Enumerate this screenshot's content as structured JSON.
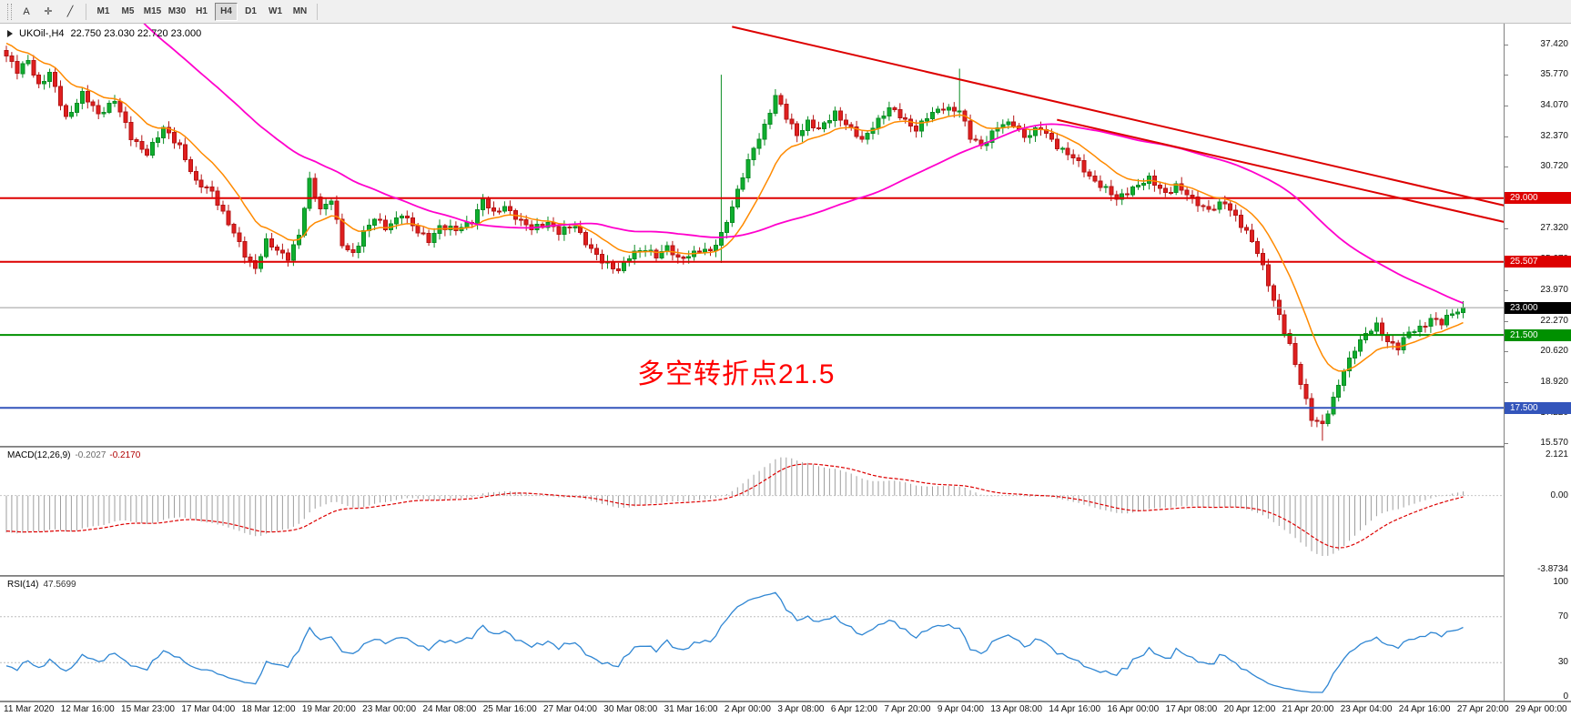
{
  "toolbar": {
    "tools": [
      {
        "name": "text-tool",
        "glyph": "A"
      },
      {
        "name": "crosshair-tool",
        "glyph": "✛"
      },
      {
        "name": "trendline-tool",
        "glyph": "╱"
      }
    ],
    "timeframes": [
      "M1",
      "M5",
      "M15",
      "M30",
      "H1",
      "H4",
      "D1",
      "W1",
      "MN"
    ],
    "active_timeframe": "H4"
  },
  "chart": {
    "title_symbol": "UKOil-,H4",
    "title_ohlc": "22.750 23.030 22.720 23.000",
    "annotation": {
      "text": "多空转折点21.5",
      "color": "#ff0000"
    },
    "price_axis_ticks": [
      "37.420",
      "35.770",
      "34.070",
      "32.370",
      "30.720",
      "29.020",
      "27.320",
      "25.670",
      "23.970",
      "22.270",
      "20.620",
      "18.920",
      "17.220",
      "15.570"
    ],
    "levels": [
      {
        "price": 29.0,
        "label": "29.000",
        "color": "#dd0000",
        "width": 2
      },
      {
        "price": 25.507,
        "label": "25.507",
        "color": "#dd0000",
        "width": 2
      },
      {
        "price": 23.0,
        "label": "23.000",
        "color": "#9c9c9c",
        "box": "#000000",
        "width": 1,
        "current": true
      },
      {
        "price": 21.5,
        "label": "21.500",
        "color": "#009000",
        "width": 2
      },
      {
        "price": 17.5,
        "label": "17.500",
        "color": "#3355bb",
        "width": 2
      }
    ]
  },
  "macd_panel": {
    "label": "MACD(12,26,9)",
    "value_main": "-0.2027",
    "value_signal": "-0.2170",
    "axis_max": "2.121",
    "axis_zero": "0.00",
    "axis_min": "-3.8734"
  },
  "rsi_panel": {
    "label": "RSI(14)",
    "value": "47.5699",
    "axis": [
      "100",
      "70",
      "30",
      "0"
    ],
    "levels": [
      70,
      30
    ]
  },
  "time_axis": {
    "labels": [
      "11 Mar 2020",
      "12 Mar 16:00",
      "15 Mar 23:00",
      "17 Mar 04:00",
      "18 Mar 12:00",
      "19 Mar 20:00",
      "23 Mar 00:00",
      "24 Mar 08:00",
      "25 Mar 16:00",
      "27 Mar 04:00",
      "30 Mar 08:00",
      "31 Mar 16:00",
      "2 Apr 00:00",
      "3 Apr 08:00",
      "6 Apr 12:00",
      "7 Apr 20:00",
      "9 Apr 04:00",
      "13 Apr 08:00",
      "14 Apr 16:00",
      "16 Apr 00:00",
      "17 Apr 08:00",
      "20 Apr 12:00",
      "21 Apr 20:00",
      "23 Apr 04:00",
      "24 Apr 16:00",
      "27 Apr 20:00",
      "29 Apr 00:00"
    ]
  },
  "chart_data": {
    "type": "candlestick",
    "symbol": "UKOil-",
    "timeframe": "H4",
    "current_bar": {
      "open": 22.75,
      "high": 23.03,
      "low": 22.72,
      "close": 23.0
    },
    "visible_price_range": [
      15.42,
      38.56
    ],
    "bars_visible": 270,
    "close_keyframes": [
      [
        0,
        36.8
      ],
      [
        2,
        35.9
      ],
      [
        4,
        36.6
      ],
      [
        6,
        35.2
      ],
      [
        8,
        35.8
      ],
      [
        11,
        33.4
      ],
      [
        14,
        34.7
      ],
      [
        17,
        33.6
      ],
      [
        20,
        34.4
      ],
      [
        23,
        32.3
      ],
      [
        26,
        31.5
      ],
      [
        29,
        32.8
      ],
      [
        32,
        31.9
      ],
      [
        35,
        29.8
      ],
      [
        38,
        29.4
      ],
      [
        41,
        27.6
      ],
      [
        44,
        25.9
      ],
      [
        46,
        25.2
      ],
      [
        48,
        26.6
      ],
      [
        50,
        26.1
      ],
      [
        52,
        25.8
      ],
      [
        54,
        27.0
      ],
      [
        56,
        29.9
      ],
      [
        58,
        28.4
      ],
      [
        60,
        29.0
      ],
      [
        62,
        26.4
      ],
      [
        64,
        25.9
      ],
      [
        66,
        27.2
      ],
      [
        68,
        27.9
      ],
      [
        70,
        27.3
      ],
      [
        73,
        28.2
      ],
      [
        76,
        27.1
      ],
      [
        78,
        26.7
      ],
      [
        80,
        27.5
      ],
      [
        83,
        27.2
      ],
      [
        86,
        27.8
      ],
      [
        88,
        28.9
      ],
      [
        90,
        28.1
      ],
      [
        92,
        28.6
      ],
      [
        95,
        27.7
      ],
      [
        97,
        27.3
      ],
      [
        100,
        27.7
      ],
      [
        102,
        27.1
      ],
      [
        105,
        27.5
      ],
      [
        108,
        26.2
      ],
      [
        110,
        25.5
      ],
      [
        113,
        25.1
      ],
      [
        115,
        25.8
      ],
      [
        118,
        26.2
      ],
      [
        120,
        25.9
      ],
      [
        122,
        26.3
      ],
      [
        124,
        25.6
      ],
      [
        126,
        25.9
      ],
      [
        128,
        26.2
      ],
      [
        130,
        26.0
      ],
      [
        132,
        27.0
      ],
      [
        134,
        28.6
      ],
      [
        136,
        30.2
      ],
      [
        138,
        31.7
      ],
      [
        140,
        33.0
      ],
      [
        142,
        34.6
      ],
      [
        144,
        33.4
      ],
      [
        146,
        32.5
      ],
      [
        148,
        33.2
      ],
      [
        150,
        32.7
      ],
      [
        153,
        33.7
      ],
      [
        155,
        33.1
      ],
      [
        158,
        32.1
      ],
      [
        160,
        33.0
      ],
      [
        163,
        33.9
      ],
      [
        165,
        33.5
      ],
      [
        168,
        32.8
      ],
      [
        170,
        33.4
      ],
      [
        173,
        34.0
      ],
      [
        176,
        33.8
      ],
      [
        178,
        32.3
      ],
      [
        180,
        31.9
      ],
      [
        183,
        32.9
      ],
      [
        186,
        33.1
      ],
      [
        188,
        32.4
      ],
      [
        191,
        32.8
      ],
      [
        194,
        31.9
      ],
      [
        197,
        31.2
      ],
      [
        200,
        30.2
      ],
      [
        203,
        29.5
      ],
      [
        205,
        28.9
      ],
      [
        208,
        29.6
      ],
      [
        211,
        30.0
      ],
      [
        214,
        29.3
      ],
      [
        216,
        29.7
      ],
      [
        219,
        28.9
      ],
      [
        222,
        28.4
      ],
      [
        225,
        28.7
      ],
      [
        227,
        28.0
      ],
      [
        229,
        27.2
      ],
      [
        231,
        26.0
      ],
      [
        233,
        24.3
      ],
      [
        235,
        22.6
      ],
      [
        237,
        20.9
      ],
      [
        239,
        18.8
      ],
      [
        241,
        17.0
      ],
      [
        243,
        16.6
      ],
      [
        245,
        17.9
      ],
      [
        247,
        19.6
      ],
      [
        249,
        20.8
      ],
      [
        251,
        21.5
      ],
      [
        253,
        22.0
      ],
      [
        255,
        21.2
      ],
      [
        257,
        20.8
      ],
      [
        259,
        21.6
      ],
      [
        261,
        21.9
      ],
      [
        263,
        22.4
      ],
      [
        265,
        22.1
      ],
      [
        267,
        22.7
      ],
      [
        269,
        23.0
      ]
    ],
    "spikes": [
      {
        "i": 56,
        "high": 30.45
      },
      {
        "i": 88,
        "high": 29.15
      },
      {
        "i": 132,
        "high": 35.77,
        "low": 25.45
      },
      {
        "i": 176,
        "high": 36.1
      },
      {
        "i": 243,
        "low": 15.7
      }
    ],
    "moving_averages": [
      {
        "name": "fast-ma",
        "period": 13,
        "color": "#ff8a00"
      },
      {
        "name": "slow-ma",
        "period": 55,
        "color": "#ff00cc"
      }
    ],
    "trendlines": [
      {
        "i1": 134,
        "p1": 38.4,
        "i2": 278,
        "p2": 28.5,
        "color": "#dd0000"
      },
      {
        "i1": 194,
        "p1": 33.3,
        "i2": 278,
        "p2": 27.6,
        "color": "#dd0000"
      }
    ],
    "horizontal_levels": [
      29.0,
      25.507,
      23.0,
      21.5,
      17.5
    ],
    "macd": {
      "fast": 12,
      "slow": 26,
      "signal": 9,
      "last_main": -0.2027,
      "last_signal": -0.217,
      "scale_max": 2.121,
      "scale_min": -3.8734
    },
    "rsi": {
      "period": 14,
      "last": 47.5699,
      "scale": [
        0,
        100
      ],
      "overbought": 70,
      "oversold": 30
    }
  }
}
